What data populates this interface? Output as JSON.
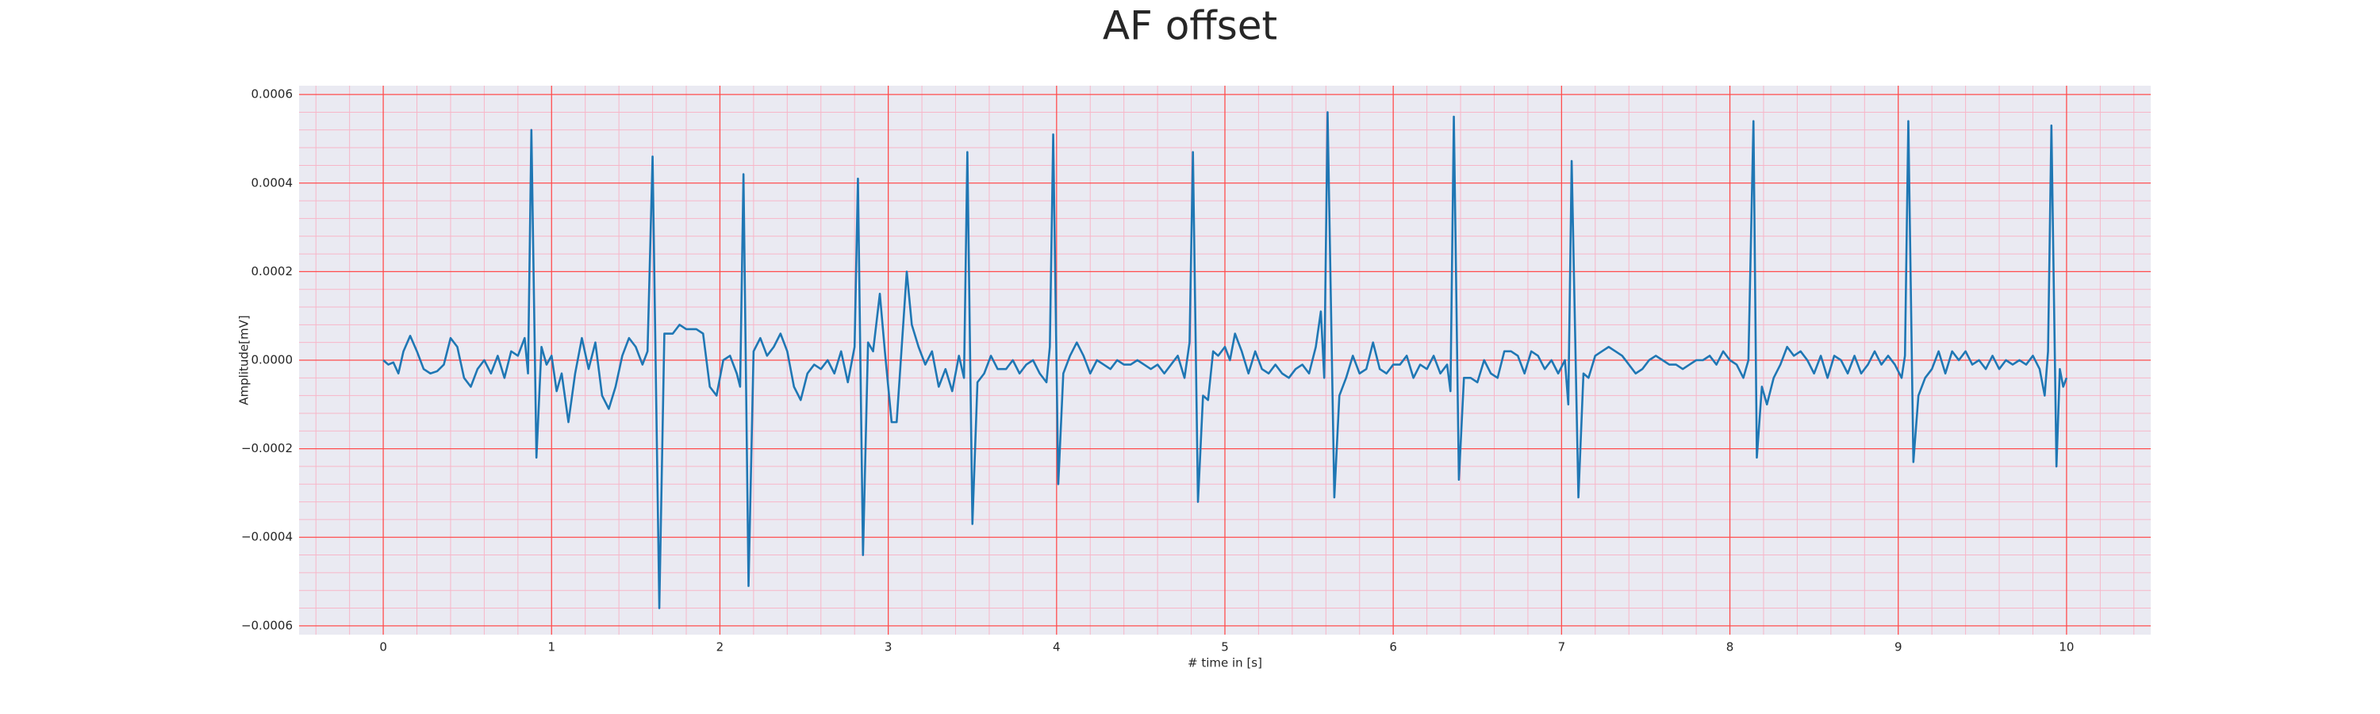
{
  "chart_data": {
    "type": "line",
    "title": "AF offset",
    "xlabel": "# time in [s]",
    "ylabel": "Amplitude[mV]",
    "color": "#1f77b4",
    "background": "#eaeaf2",
    "grid": true,
    "grid_color": "#ff4d4d",
    "minor_grid": true,
    "minor_grid_color": "#f7b6c8",
    "minor_per_major": 5,
    "xlim": [
      -0.5,
      10.5
    ],
    "ylim": [
      -0.00062,
      0.00062
    ],
    "xticks": [
      0,
      1,
      2,
      3,
      4,
      5,
      6,
      7,
      8,
      9,
      10
    ],
    "yticks": [
      {
        "value": -0.0006,
        "label": "−0.0006"
      },
      {
        "value": -0.0004,
        "label": "−0.0004"
      },
      {
        "value": -0.0002,
        "label": "−0.0002"
      },
      {
        "value": 0,
        "label": "0.0000"
      },
      0.0002,
      0.0004,
      0.0006
    ],
    "x": [
      0,
      0.03,
      0.06,
      0.09,
      0.12,
      0.16,
      0.2,
      0.24,
      0.28,
      0.32,
      0.36,
      0.4,
      0.44,
      0.48,
      0.52,
      0.56,
      0.6,
      0.64,
      0.68,
      0.72,
      0.76,
      0.8,
      0.84,
      0.86,
      0.88,
      0.91,
      0.94,
      0.97,
      1.0,
      1.03,
      1.06,
      1.1,
      1.14,
      1.18,
      1.22,
      1.26,
      1.3,
      1.34,
      1.38,
      1.42,
      1.46,
      1.5,
      1.54,
      1.57,
      1.6,
      1.64,
      1.67,
      1.72,
      1.76,
      1.8,
      1.86,
      1.9,
      1.94,
      1.98,
      2.02,
      2.06,
      2.1,
      2.12,
      2.14,
      2.17,
      2.2,
      2.24,
      2.28,
      2.32,
      2.36,
      2.4,
      2.44,
      2.48,
      2.52,
      2.56,
      2.6,
      2.64,
      2.68,
      2.72,
      2.76,
      2.8,
      2.82,
      2.85,
      2.88,
      2.91,
      2.95,
      2.98,
      3.02,
      3.05,
      3.08,
      3.11,
      3.14,
      3.18,
      3.22,
      3.26,
      3.3,
      3.34,
      3.38,
      3.42,
      3.45,
      3.47,
      3.5,
      3.53,
      3.57,
      3.61,
      3.65,
      3.7,
      3.74,
      3.78,
      3.82,
      3.86,
      3.9,
      3.94,
      3.96,
      3.98,
      4.01,
      4.04,
      4.08,
      4.12,
      4.16,
      4.2,
      4.24,
      4.28,
      4.32,
      4.36,
      4.4,
      4.44,
      4.48,
      4.52,
      4.56,
      4.6,
      4.64,
      4.68,
      4.72,
      4.76,
      4.79,
      4.81,
      4.84,
      4.87,
      4.9,
      4.93,
      4.96,
      5.0,
      5.03,
      5.06,
      5.1,
      5.14,
      5.18,
      5.22,
      5.26,
      5.3,
      5.34,
      5.38,
      5.42,
      5.46,
      5.5,
      5.54,
      5.57,
      5.59,
      5.61,
      5.65,
      5.68,
      5.72,
      5.76,
      5.8,
      5.84,
      5.88,
      5.92,
      5.96,
      6.0,
      6.04,
      6.08,
      6.12,
      6.16,
      6.2,
      6.24,
      6.28,
      6.32,
      6.34,
      6.36,
      6.39,
      6.42,
      6.46,
      6.5,
      6.54,
      6.58,
      6.62,
      6.66,
      6.7,
      6.74,
      6.78,
      6.82,
      6.86,
      6.9,
      6.94,
      6.98,
      7.02,
      7.04,
      7.06,
      7.1,
      7.13,
      7.16,
      7.2,
      7.24,
      7.28,
      7.32,
      7.36,
      7.4,
      7.44,
      7.48,
      7.52,
      7.56,
      7.6,
      7.64,
      7.68,
      7.72,
      7.76,
      7.8,
      7.84,
      7.88,
      7.92,
      7.96,
      8.0,
      8.04,
      8.08,
      8.11,
      8.14,
      8.16,
      8.19,
      8.22,
      8.26,
      8.3,
      8.34,
      8.38,
      8.42,
      8.46,
      8.5,
      8.54,
      8.58,
      8.62,
      8.66,
      8.7,
      8.74,
      8.78,
      8.82,
      8.86,
      8.9,
      8.94,
      8.98,
      9.02,
      9.04,
      9.06,
      9.09,
      9.12,
      9.16,
      9.2,
      9.24,
      9.28,
      9.32,
      9.36,
      9.4,
      9.44,
      9.48,
      9.52,
      9.56,
      9.6,
      9.64,
      9.68,
      9.72,
      9.76,
      9.8,
      9.84,
      9.87,
      9.89,
      9.91,
      9.94,
      9.96,
      9.98,
      10.0
    ],
    "values": [
      0,
      -1e-05,
      -5e-06,
      -3e-05,
      2e-05,
      5.5e-05,
      2e-05,
      -2e-05,
      -3e-05,
      -2.5e-05,
      -1e-05,
      5e-05,
      3e-05,
      -4e-05,
      -6e-05,
      -2e-05,
      0,
      -3e-05,
      1e-05,
      -4e-05,
      2e-05,
      1e-05,
      5e-05,
      -3e-05,
      0.00052,
      -0.00022,
      3e-05,
      -1e-05,
      1e-05,
      -7e-05,
      -3e-05,
      -0.00014,
      -3e-05,
      5e-05,
      -2e-05,
      4e-05,
      -8e-05,
      -0.00011,
      -6e-05,
      1e-05,
      5e-05,
      3e-05,
      -1e-05,
      2e-05,
      0.00046,
      -0.00056,
      6e-05,
      6e-05,
      8e-05,
      7e-05,
      7e-05,
      6e-05,
      -6e-05,
      -8e-05,
      0,
      1e-05,
      -3e-05,
      -6e-05,
      0.00042,
      -0.00051,
      2e-05,
      5e-05,
      1e-05,
      3e-05,
      6e-05,
      2e-05,
      -6e-05,
      -9e-05,
      -3e-05,
      -1e-05,
      -2e-05,
      0,
      -3e-05,
      2e-05,
      -5e-05,
      3e-05,
      0.00041,
      -0.00044,
      4e-05,
      2e-05,
      0.00015,
      2e-05,
      -0.00014,
      -0.00014,
      3e-05,
      0.0002,
      8e-05,
      3e-05,
      -1e-05,
      2e-05,
      -6e-05,
      -2e-05,
      -7e-05,
      1e-05,
      -4e-05,
      0.00047,
      -0.00037,
      -5e-05,
      -3e-05,
      1e-05,
      -2e-05,
      -2e-05,
      0,
      -3e-05,
      -1e-05,
      0,
      -3e-05,
      -5e-05,
      3e-05,
      0.00051,
      -0.00028,
      -3e-05,
      1e-05,
      4e-05,
      1e-05,
      -3e-05,
      0,
      -1e-05,
      -2e-05,
      0,
      -1e-05,
      -1e-05,
      0,
      -1e-05,
      -2e-05,
      -1e-05,
      -3e-05,
      -1e-05,
      1e-05,
      -4e-05,
      4e-05,
      0.00047,
      -0.00032,
      -8e-05,
      -9e-05,
      2e-05,
      1e-05,
      3e-05,
      0,
      6e-05,
      2e-05,
      -3e-05,
      2e-05,
      -2e-05,
      -3e-05,
      -1e-05,
      -3e-05,
      -4e-05,
      -2e-05,
      -1e-05,
      -3e-05,
      3e-05,
      0.00011,
      -4e-05,
      0.00056,
      -0.00031,
      -8e-05,
      -4e-05,
      1e-05,
      -3e-05,
      -2e-05,
      4e-05,
      -2e-05,
      -3e-05,
      -1e-05,
      -1e-05,
      1e-05,
      -4e-05,
      -1e-05,
      -2e-05,
      1e-05,
      -3e-05,
      -1e-05,
      -7e-05,
      0.00055,
      -0.00027,
      -4e-05,
      -4e-05,
      -5e-05,
      0,
      -3e-05,
      -4e-05,
      2e-05,
      2e-05,
      1e-05,
      -3e-05,
      2e-05,
      1e-05,
      -2e-05,
      0,
      -3e-05,
      0,
      -0.0001,
      0.00045,
      -0.00031,
      -3e-05,
      -4e-05,
      1e-05,
      2e-05,
      3e-05,
      2e-05,
      1e-05,
      -1e-05,
      -3e-05,
      -2e-05,
      0,
      1e-05,
      0,
      -1e-05,
      -1e-05,
      -2e-05,
      -1e-05,
      0,
      0,
      1e-05,
      -1e-05,
      2e-05,
      0,
      -1e-05,
      -4e-05,
      0,
      0.00054,
      -0.00022,
      -6e-05,
      -0.0001,
      -4e-05,
      -1e-05,
      3e-05,
      1e-05,
      2e-05,
      0,
      -3e-05,
      1e-05,
      -4e-05,
      1e-05,
      0,
      -3e-05,
      1e-05,
      -3e-05,
      -1e-05,
      2e-05,
      -1e-05,
      1e-05,
      -1e-05,
      -4e-05,
      1e-05,
      0.00054,
      -0.00023,
      -8e-05,
      -4e-05,
      -2e-05,
      2e-05,
      -3e-05,
      2e-05,
      0,
      2e-05,
      -1e-05,
      0,
      -2e-05,
      1e-05,
      -2e-05,
      0,
      -1e-05,
      0,
      -1e-05,
      1e-05,
      -2e-05,
      -8e-05,
      2e-05,
      0.00053,
      -0.00024,
      -2e-05,
      -6e-05,
      -4e-05
    ]
  }
}
